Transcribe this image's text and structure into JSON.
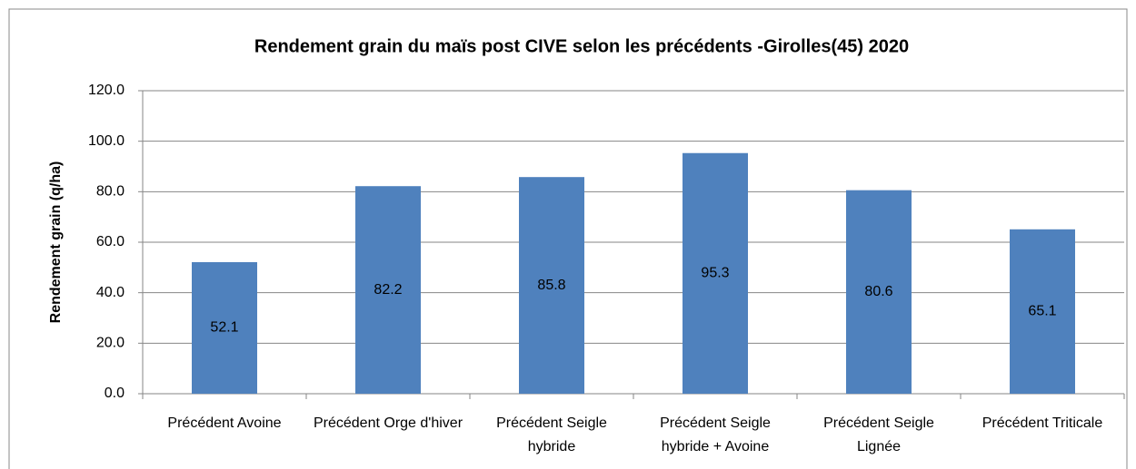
{
  "chart_data": {
    "type": "bar",
    "title": "Rendement grain du maïs post CIVE selon les précédents -Girolles(45) 2020",
    "y_label": "Rendement grain (q/ha)",
    "categories": [
      "Précédent Avoine",
      "Précédent Orge d'hiver",
      "Précédent Seigle hybride",
      "Précédent Seigle hybride + Avoine",
      "Précédent Seigle Lignée",
      "Précédent Triticale"
    ],
    "values": [
      52.1,
      82.2,
      85.8,
      95.3,
      80.6,
      65.1
    ],
    "color": "#4f81bd",
    "ylim": [
      0,
      120
    ],
    "yticks": [
      {
        "value": 0,
        "label": "0.0"
      },
      {
        "value": 20,
        "label": "20.0"
      },
      {
        "value": 40,
        "label": "40.0"
      },
      {
        "value": 60,
        "label": "60.0"
      },
      {
        "value": 80,
        "label": "80.0"
      },
      {
        "value": 100,
        "label": "100.0"
      },
      {
        "value": 120,
        "label": "120.0"
      }
    ],
    "grid": true
  }
}
